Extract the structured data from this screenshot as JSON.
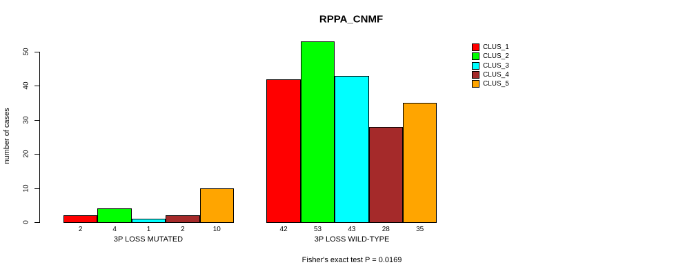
{
  "chart_data": {
    "type": "bar",
    "title": "RPPA_CNMF",
    "ylabel": "number of cases",
    "yticks": [
      0,
      10,
      20,
      30,
      40,
      50
    ],
    "ylim": [
      0,
      50
    ],
    "grid": false,
    "legend_position": "right-outside",
    "series_names": [
      "CLUS_1",
      "CLUS_2",
      "CLUS_3",
      "CLUS_4",
      "CLUS_5"
    ],
    "colors": [
      "#FF0000",
      "#00FF00",
      "#00FFFF",
      "#A52A2A",
      "#FFA500"
    ],
    "groups": [
      {
        "label": "3P LOSS MUTATED",
        "values": [
          2,
          4,
          1,
          2,
          10
        ]
      },
      {
        "label": "3P LOSS WILD-TYPE",
        "values": [
          42,
          53,
          43,
          28,
          35
        ]
      }
    ],
    "footnote": "Fisher's exact test P = 0.0169"
  }
}
